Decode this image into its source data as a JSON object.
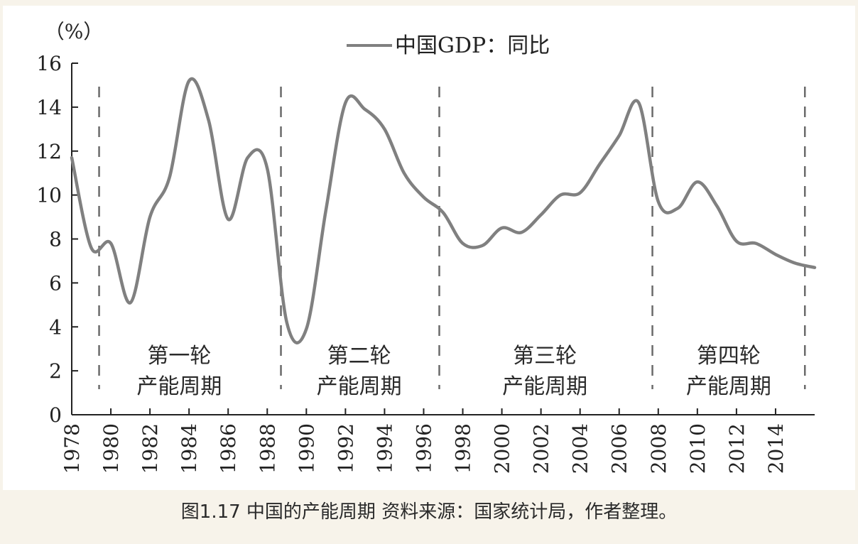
{
  "chart_data": {
    "type": "line",
    "title": "",
    "ylabel": "（%）",
    "xlabel": "",
    "xlim": [
      1978,
      2016
    ],
    "ylim": [
      0,
      16
    ],
    "yticks": [
      0,
      2,
      4,
      6,
      8,
      10,
      12,
      14,
      16
    ],
    "xticks": [
      1978,
      1980,
      1982,
      1984,
      1986,
      1988,
      1990,
      1992,
      1994,
      1996,
      1998,
      2000,
      2002,
      2004,
      2006,
      2008,
      2010,
      2012,
      2014
    ],
    "legend": {
      "position": "top-center",
      "label": "中国GDP：同比"
    },
    "series": [
      {
        "name": "中国GDP：同比",
        "color": "#808080",
        "x": [
          1978,
          1979,
          1980,
          1981,
          1982,
          1983,
          1984,
          1985,
          1986,
          1987,
          1988,
          1989,
          1990,
          1991,
          1992,
          1993,
          1994,
          1995,
          1996,
          1997,
          1998,
          1999,
          2000,
          2001,
          2002,
          2003,
          2004,
          2005,
          2006,
          2007,
          2008,
          2009,
          2010,
          2011,
          2012,
          2013,
          2014,
          2015,
          2016
        ],
        "values": [
          11.7,
          7.6,
          7.8,
          5.1,
          9.0,
          10.8,
          15.2,
          13.4,
          8.9,
          11.7,
          11.2,
          4.2,
          3.9,
          9.3,
          14.2,
          13.9,
          13.0,
          11.0,
          9.9,
          9.2,
          7.8,
          7.7,
          8.5,
          8.3,
          9.1,
          10.0,
          10.1,
          11.4,
          12.7,
          14.2,
          9.7,
          9.4,
          10.6,
          9.5,
          7.9,
          7.8,
          7.3,
          6.9,
          6.7
        ]
      }
    ],
    "cycle_dividers": [
      1979.4,
      1988.7,
      1996.8,
      2007.7,
      2015.5
    ],
    "cycles": [
      {
        "line1": "第一轮",
        "line2": "产能周期",
        "x": 1983.5
      },
      {
        "line1": "第二轮",
        "line2": "产能周期",
        "x": 1992.7
      },
      {
        "line1": "第三轮",
        "line2": "产能周期",
        "x": 2002.2
      },
      {
        "line1": "第四轮",
        "line2": "产能周期",
        "x": 2011.6
      }
    ]
  },
  "caption": "图1.17 中国的产能周期  资料来源：国家统计局，作者整理。"
}
